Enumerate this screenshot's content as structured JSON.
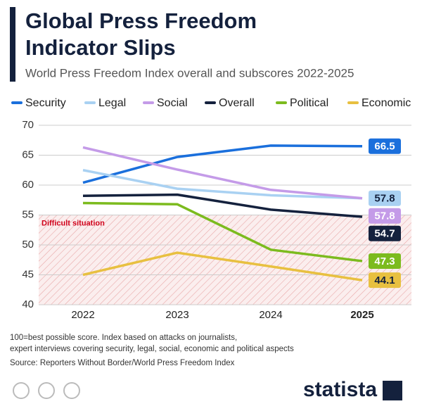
{
  "chart_data": {
    "type": "line",
    "title": "Global Press Freedom Indicator Slips",
    "subtitle": "World Press Freedom Index overall and subscores 2022-2025",
    "categories": [
      "2022",
      "2023",
      "2024",
      "2025"
    ],
    "series": [
      {
        "name": "Security",
        "color": "#1a6fdc",
        "values": [
          60.4,
          64.7,
          66.6,
          66.5
        ]
      },
      {
        "name": "Legal",
        "color": "#a9d1f2",
        "values": [
          62.5,
          59.4,
          58.3,
          57.8
        ]
      },
      {
        "name": "Social",
        "color": "#c49be8",
        "values": [
          66.3,
          62.6,
          59.2,
          57.8
        ]
      },
      {
        "name": "Overall",
        "color": "#14213d",
        "values": [
          58.2,
          58.4,
          55.9,
          54.7
        ]
      },
      {
        "name": "Political",
        "color": "#7cbb1e",
        "values": [
          57.0,
          56.8,
          49.2,
          47.3
        ]
      },
      {
        "name": "Economic",
        "color": "#e8c040",
        "values": [
          45.0,
          48.7,
          46.4,
          44.1
        ]
      }
    ],
    "ylim": [
      40,
      70
    ],
    "yticks": [
      40,
      45,
      50,
      55,
      60,
      65,
      70
    ],
    "grid": true,
    "annotation": {
      "text": "Difficult situation",
      "range": [
        40,
        55
      ]
    },
    "footnote": [
      "100=best possible score. Index based on attacks on journalists,",
      "expert interviews covering security, legal, social, economic and political aspects"
    ],
    "source": "Source: Reporters Without Border/World Press Freedom Index",
    "brand": "statista"
  }
}
